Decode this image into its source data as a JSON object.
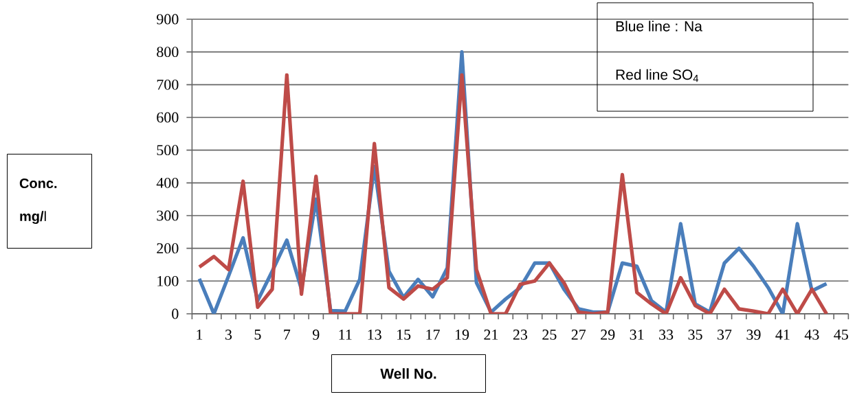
{
  "chart_data": {
    "type": "line",
    "xlabel": "Well No.",
    "ylabel": "**Conc. mg/**l",
    "categories": [
      "1",
      null,
      "3",
      null,
      "5",
      null,
      "7",
      null,
      "9",
      null,
      "11",
      null,
      "13",
      null,
      "15",
      null,
      "17",
      null,
      "19",
      null,
      "21",
      null,
      "23",
      null,
      "25",
      null,
      "27",
      null,
      "29",
      null,
      "31",
      null,
      "33",
      null,
      "35",
      null,
      "37",
      null,
      "39",
      null,
      "41",
      null,
      "43",
      null,
      "45"
    ],
    "series": [
      {
        "color": "#4a7ebb",
        "values": [
          107,
          0,
          115,
          232,
          40,
          130,
          225,
          75,
          350,
          10,
          8,
          105,
          450,
          130,
          50,
          105,
          52,
          140,
          800,
          95,
          5,
          45,
          80,
          155,
          155,
          75,
          15,
          5,
          5,
          155,
          145,
          40,
          5,
          275,
          30,
          5,
          155,
          200,
          145,
          80,
          0,
          275,
          70,
          92,
          null
        ]
      },
      {
        "color": "#be4b48",
        "values": [
          143,
          175,
          135,
          405,
          20,
          75,
          730,
          60,
          420,
          0,
          0,
          0,
          520,
          80,
          45,
          85,
          75,
          110,
          730,
          135,
          0,
          0,
          90,
          100,
          155,
          95,
          5,
          0,
          5,
          425,
          65,
          30,
          0,
          110,
          25,
          0,
          75,
          15,
          8,
          0,
          75,
          0,
          75,
          0,
          null
        ]
      }
    ],
    "ylim": [
      0,
      900
    ],
    "yticks": [
      0,
      100,
      200,
      300,
      400,
      500,
      600,
      700,
      800,
      900
    ],
    "grid": "y",
    "annotations": [
      "Blue line : Na",
      "Red line SO$_{4}$"
    ]
  }
}
